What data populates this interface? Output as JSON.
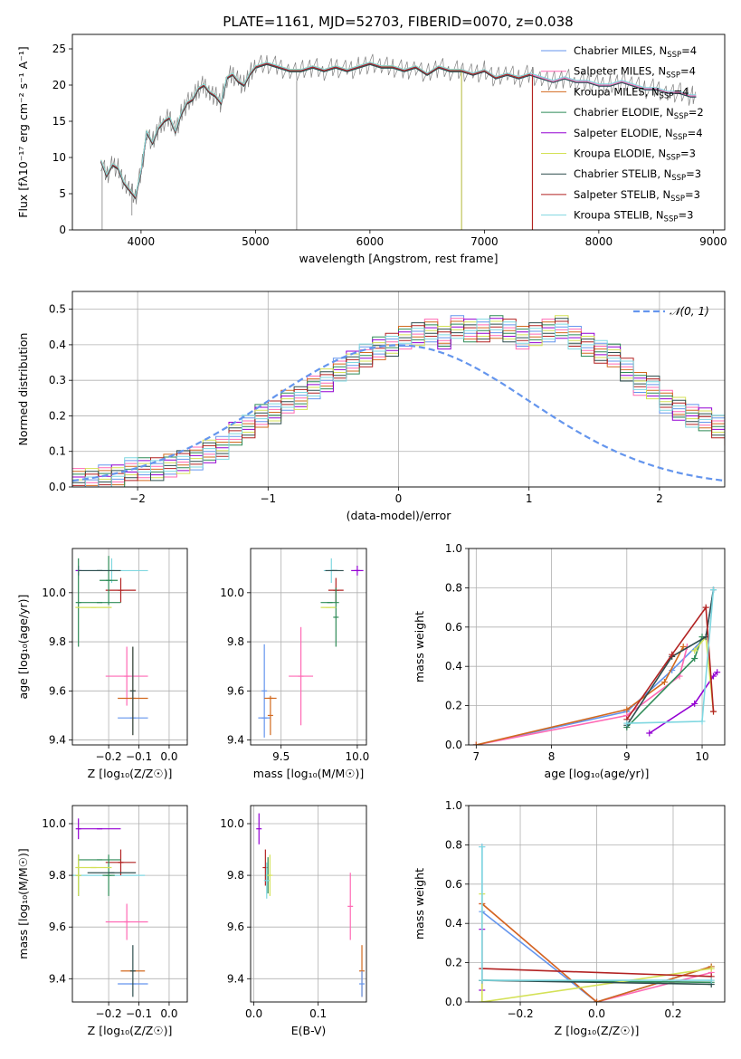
{
  "title": "PLATE=1161, MJD=52703, FIBERID=0070, z=0.038",
  "colors": {
    "frame": "#000000",
    "grid": "#b0b0b0",
    "model": "#6495ed"
  },
  "chart_data": [
    {
      "id": "spectrum",
      "type": "line",
      "title": "PLATE=1161, MJD=52703, FIBERID=0070, z=0.038",
      "xlabel": "wavelength [Angstrom, rest frame]",
      "ylabel": "Flux [fλ10⁻¹⁷ erg cm⁻² s⁻¹ A⁻¹]",
      "xlim": [
        3400,
        9100
      ],
      "ylim": [
        0,
        27
      ],
      "xticks": [
        4000,
        5000,
        6000,
        7000,
        8000,
        9000
      ],
      "yticks": [
        0,
        5,
        10,
        15,
        20,
        25
      ],
      "grid": false,
      "legend_position": "top-right",
      "data_color": "#808080",
      "data_x": [
        3650,
        3700,
        3750,
        3800,
        3850,
        3900,
        3950,
        4000,
        4050,
        4100,
        4150,
        4200,
        4250,
        4300,
        4350,
        4400,
        4450,
        4500,
        4550,
        4600,
        4650,
        4700,
        4750,
        4800,
        4850,
        4900,
        4950,
        5000,
        5100,
        5200,
        5300,
        5400,
        5500,
        5600,
        5700,
        5800,
        5900,
        6000,
        6100,
        6200,
        6300,
        6400,
        6500,
        6600,
        6700,
        6800,
        6900,
        7000,
        7100,
        7200,
        7300,
        7400,
        7500,
        7600,
        7700,
        7800,
        7900,
        8000,
        8100,
        8200,
        8300,
        8400,
        8500,
        8600,
        8700,
        8800,
        8850
      ],
      "data_y": [
        9.5,
        7.5,
        9.0,
        8.5,
        6.5,
        5.5,
        4.5,
        8.0,
        13.5,
        12.0,
        14.0,
        15.0,
        15.5,
        13.5,
        16.0,
        17.5,
        18.0,
        19.5,
        20.0,
        19.0,
        18.5,
        17.5,
        21.0,
        21.5,
        20.5,
        20.0,
        21.5,
        22.5,
        23.0,
        22.5,
        22.0,
        22.0,
        22.5,
        22.0,
        22.5,
        22.0,
        22.5,
        23.0,
        22.5,
        22.5,
        22.0,
        22.5,
        21.5,
        22.5,
        22.0,
        22.0,
        21.5,
        22.0,
        21.0,
        21.5,
        21.0,
        21.5,
        21.0,
        20.5,
        21.0,
        20.5,
        20.5,
        20.0,
        20.0,
        20.5,
        20.0,
        19.5,
        19.5,
        19.0,
        19.0,
        18.5,
        18.5
      ],
      "spikes": [
        {
          "x": 3660,
          "y": 0
        },
        {
          "x": 3920,
          "y": 2
        },
        {
          "x": 5360,
          "y": 0
        },
        {
          "x": 6800,
          "y": 0
        },
        {
          "x": 7420,
          "y": 0
        }
      ],
      "series": [
        {
          "name": "Chabrier MILES, N",
          "sub": "SSP",
          "suffix": "=4",
          "color": "#6495ed",
          "xmax": 8850
        },
        {
          "name": "Salpeter MILES, N",
          "sub": "SSP",
          "suffix": "=4",
          "color": "#ff69b4",
          "xmax": 8850
        },
        {
          "name": "Kroupa MILES, N",
          "sub": "SSP",
          "suffix": "=4",
          "color": "#d2691e",
          "xmax": 7420
        },
        {
          "name": "Chabrier ELODIE, N",
          "sub": "SSP",
          "suffix": "=2",
          "color": "#2e8b57",
          "xmax": 6800
        },
        {
          "name": "Salpeter ELODIE, N",
          "sub": "SSP",
          "suffix": "=4",
          "color": "#9400d3",
          "xmax": 6800
        },
        {
          "name": "Kroupa ELODIE, N",
          "sub": "SSP",
          "suffix": "=3",
          "color": "#d4e157",
          "xmax": 6800
        },
        {
          "name": "Chabrier STELIB, N",
          "sub": "SSP",
          "suffix": "=3",
          "color": "#2f4f4f",
          "xmax": 8850
        },
        {
          "name": "Salpeter STELIB, N",
          "sub": "SSP",
          "suffix": "=3",
          "color": "#b22222",
          "xmax": 7420
        },
        {
          "name": "Kroupa STELIB, N",
          "sub": "SSP",
          "suffix": "=3",
          "color": "#7fd7e0",
          "xmax": 8850
        }
      ]
    },
    {
      "id": "residuals",
      "type": "step-histogram",
      "xlabel": "(data-model)/error",
      "ylabel": "Normed distribution",
      "xlim": [
        -2.5,
        2.5
      ],
      "ylim": [
        0,
        0.55
      ],
      "xticks": [
        -2,
        -1,
        0,
        1,
        2
      ],
      "yticks": [
        0.0,
        0.1,
        0.2,
        0.3,
        0.4,
        0.5
      ],
      "grid": true,
      "legend_position": "top-right",
      "legend": "𝒩(0, 1)",
      "gaussian": {
        "mean": 0,
        "sigma": 1,
        "color": "#6495ed"
      },
      "bin_width": 0.1,
      "bin_start": -2.5,
      "base_values": [
        0.02,
        0.02,
        0.03,
        0.03,
        0.05,
        0.05,
        0.05,
        0.06,
        0.07,
        0.08,
        0.1,
        0.11,
        0.15,
        0.17,
        0.2,
        0.21,
        0.24,
        0.25,
        0.28,
        0.3,
        0.33,
        0.35,
        0.37,
        0.39,
        0.4,
        0.42,
        0.43,
        0.44,
        0.42,
        0.45,
        0.44,
        0.44,
        0.45,
        0.44,
        0.42,
        0.43,
        0.44,
        0.45,
        0.42,
        0.4,
        0.38,
        0.37,
        0.33,
        0.29,
        0.28,
        0.24,
        0.22,
        0.2,
        0.19,
        0.17,
        0.15,
        0.13,
        0.12,
        0.1,
        0.09,
        0.08,
        0.07,
        0.06,
        0.05,
        0.04,
        0.03,
        0.03,
        0.03,
        0.02,
        0.02,
        0.02,
        0.02,
        0.01,
        0.01,
        0.01
      ],
      "series_colors": [
        "#6495ed",
        "#ff69b4",
        "#d2691e",
        "#2e8b57",
        "#9400d3",
        "#d4e157",
        "#2f4f4f",
        "#b22222",
        "#7fd7e0"
      ]
    },
    {
      "id": "age-vs-Z",
      "type": "errorbar",
      "xlabel": "Z [log₁₀(Z/Z☉)]",
      "ylabel": "age  [log₁₀(age/yr)]",
      "xlim": [
        -0.32,
        0.06
      ],
      "ylim": [
        9.38,
        10.18
      ],
      "xticks": [
        -0.2,
        -0.1,
        0.0
      ],
      "xticklabels": [
        "−0.2",
        "−0.1",
        "0.0"
      ],
      "yticks": [
        9.4,
        9.6,
        9.8,
        10.0
      ],
      "grid": true,
      "points": [
        {
          "x": -0.12,
          "y": 9.49,
          "xerr": 0.05,
          "yerr": 0.0,
          "color": "#6495ed"
        },
        {
          "x": -0.14,
          "y": 9.66,
          "xerr": 0.07,
          "yerr": 0.12,
          "color": "#ff69b4"
        },
        {
          "x": -0.12,
          "y": 9.57,
          "xerr": 0.05,
          "yerr": 0.0,
          "color": "#d2691e"
        },
        {
          "x": -0.12,
          "y": 9.6,
          "xerr": 0.0,
          "yerr": 0.18,
          "color": "#d2691e"
        },
        {
          "x": -0.12,
          "y": 9.6,
          "xerr": 0.0,
          "yerr": 0.18,
          "color": "#2f4f4f"
        },
        {
          "x": -0.19,
          "y": 10.09,
          "xerr": 0.12,
          "yerr": 0.05,
          "color": "#7fd7e0"
        },
        {
          "x": -0.3,
          "y": 10.09,
          "xerr": 0.0,
          "yerr": 0.02,
          "color": "#9400d3"
        },
        {
          "x": -0.16,
          "y": 10.01,
          "xerr": 0.05,
          "yerr": 0.05,
          "color": "#b22222"
        },
        {
          "x": -0.2,
          "y": 10.05,
          "xerr": 0.03,
          "yerr": 0.1,
          "color": "#2e8b57"
        },
        {
          "x": -0.23,
          "y": 9.96,
          "xerr": 0.07,
          "yerr": 0.0,
          "color": "#2e8b57"
        },
        {
          "x": -0.3,
          "y": 9.96,
          "xerr": 0.0,
          "yerr": 0.18,
          "color": "#2e8b57"
        },
        {
          "x": -0.25,
          "y": 9.94,
          "xerr": 0.06,
          "yerr": 0.0,
          "color": "#d4e157"
        },
        {
          "x": -0.23,
          "y": 10.09,
          "xerr": 0.07,
          "yerr": 0.0,
          "color": "#2f4f4f"
        }
      ]
    },
    {
      "id": "age-vs-mass",
      "type": "errorbar",
      "xlabel": "mass [log₁₀(M/M☉)]",
      "ylabel": "",
      "xlim": [
        9.3,
        10.06
      ],
      "ylim": [
        9.38,
        10.18
      ],
      "xticks": [
        9.5,
        10.0
      ],
      "xticklabels": [
        "9.5",
        "10.0"
      ],
      "yticks": [
        9.4,
        9.6,
        9.8,
        10.0
      ],
      "grid": true,
      "points": [
        {
          "x": 9.39,
          "y": 9.49,
          "xerr": 0.04,
          "yerr": 0.0,
          "color": "#6495ed"
        },
        {
          "x": 9.39,
          "y": 9.6,
          "xerr": 0.0,
          "yerr": 0.19,
          "color": "#6495ed"
        },
        {
          "x": 9.63,
          "y": 9.66,
          "xerr": 0.08,
          "yerr": 0.2,
          "color": "#ff69b4"
        },
        {
          "x": 9.43,
          "y": 9.57,
          "xerr": 0.04,
          "yerr": 0.0,
          "color": "#d2691e"
        },
        {
          "x": 9.43,
          "y": 9.5,
          "xerr": 0.0,
          "yerr": 0.08,
          "color": "#d2691e"
        },
        {
          "x": 9.83,
          "y": 10.09,
          "xerr": 0.05,
          "yerr": 0.05,
          "color": "#7fd7e0"
        },
        {
          "x": 10.0,
          "y": 10.09,
          "xerr": 0.04,
          "yerr": 0.02,
          "color": "#9400d3"
        },
        {
          "x": 9.86,
          "y": 10.01,
          "xerr": 0.05,
          "yerr": 0.05,
          "color": "#b22222"
        },
        {
          "x": 9.86,
          "y": 9.9,
          "xerr": 0.0,
          "yerr": 0.12,
          "color": "#2e8b57"
        },
        {
          "x": 9.82,
          "y": 9.96,
          "xerr": 0.06,
          "yerr": 0.0,
          "color": "#2e8b57"
        },
        {
          "x": 9.81,
          "y": 9.94,
          "xerr": 0.05,
          "yerr": 0.0,
          "color": "#d4e157"
        },
        {
          "x": 9.85,
          "y": 10.09,
          "xerr": 0.06,
          "yerr": 0.0,
          "color": "#2f4f4f"
        }
      ]
    },
    {
      "id": "massweight-vs-age",
      "type": "line",
      "xlabel": "age  [log₁₀(age/yr)]",
      "ylabel": "mass weight",
      "xlim": [
        6.9,
        10.3
      ],
      "ylim": [
        0,
        1
      ],
      "xticks": [
        7,
        8,
        9,
        10
      ],
      "yticks": [
        0.0,
        0.2,
        0.4,
        0.6,
        0.8,
        1.0
      ],
      "grid": true,
      "series": [
        {
          "color": "#6495ed",
          "x": [
            7.0,
            9.0,
            9.6,
            10.05,
            10.15
          ],
          "y": [
            0.0,
            0.17,
            0.38,
            0.55,
            0.79
          ]
        },
        {
          "color": "#ff69b4",
          "x": [
            7.0,
            9.0,
            9.7,
            9.8
          ],
          "y": [
            0.0,
            0.15,
            0.35,
            0.5
          ]
        },
        {
          "color": "#d2691e",
          "x": [
            7.0,
            9.0,
            9.5,
            9.75
          ],
          "y": [
            0.0,
            0.18,
            0.32,
            0.5
          ]
        },
        {
          "color": "#2e8b57",
          "x": [
            9.0,
            9.9,
            10.0
          ],
          "y": [
            0.09,
            0.44,
            0.55
          ]
        },
        {
          "color": "#9400d3",
          "x": [
            9.3,
            9.9,
            10.15,
            10.2
          ],
          "y": [
            0.06,
            0.21,
            0.35,
            0.37
          ]
        },
        {
          "color": "#d4e157",
          "x": [
            9.9,
            10.05,
            10.15
          ],
          "y": [
            0.48,
            0.55,
            0.17
          ]
        },
        {
          "color": "#2f4f4f",
          "x": [
            9.0,
            9.6,
            10.05,
            10.15
          ],
          "y": [
            0.1,
            0.45,
            0.55,
            0.79
          ]
        },
        {
          "color": "#b22222",
          "x": [
            9.0,
            9.6,
            10.05,
            10.15
          ],
          "y": [
            0.13,
            0.46,
            0.7,
            0.17
          ]
        },
        {
          "color": "#7fd7e0",
          "x": [
            9.0,
            10.0,
            10.15
          ],
          "y": [
            0.11,
            0.12,
            0.79
          ]
        }
      ]
    },
    {
      "id": "mass-vs-Z",
      "type": "errorbar",
      "xlabel": "Z [log₁₀(Z/Z☉)]",
      "ylabel": "mass [log₁₀(M/M☉)]",
      "xlim": [
        -0.32,
        0.06
      ],
      "ylim": [
        9.31,
        10.07
      ],
      "xticks": [
        -0.2,
        -0.1,
        0.0
      ],
      "xticklabels": [
        "−0.2",
        "−0.1",
        "0.0"
      ],
      "yticks": [
        9.4,
        9.6,
        9.8,
        10.0
      ],
      "grid": true,
      "points": [
        {
          "x": -0.12,
          "y": 9.38,
          "xerr": 0.05,
          "yerr": 0.0,
          "color": "#6495ed"
        },
        {
          "x": -0.14,
          "y": 9.62,
          "xerr": 0.07,
          "yerr": 0.07,
          "color": "#ff69b4"
        },
        {
          "x": -0.12,
          "y": 9.43,
          "xerr": 0.04,
          "yerr": 0.0,
          "color": "#d2691e"
        },
        {
          "x": -0.12,
          "y": 9.43,
          "xerr": 0.0,
          "yerr": 0.1,
          "color": "#2f4f4f"
        },
        {
          "x": -0.2,
          "y": 9.8,
          "xerr": 0.12,
          "yerr": 0.0,
          "color": "#7fd7e0"
        },
        {
          "x": -0.23,
          "y": 9.98,
          "xerr": 0.07,
          "yerr": 0.0,
          "color": "#9400d3"
        },
        {
          "x": -0.3,
          "y": 9.98,
          "xerr": 0.0,
          "yerr": 0.04,
          "color": "#9400d3"
        },
        {
          "x": -0.16,
          "y": 9.85,
          "xerr": 0.05,
          "yerr": 0.05,
          "color": "#b22222"
        },
        {
          "x": -0.2,
          "y": 9.8,
          "xerr": 0.02,
          "yerr": 0.08,
          "color": "#2e8b57"
        },
        {
          "x": -0.23,
          "y": 9.86,
          "xerr": 0.07,
          "yerr": 0.0,
          "color": "#2e8b57"
        },
        {
          "x": -0.3,
          "y": 9.8,
          "xerr": 0.0,
          "yerr": 0.08,
          "color": "#2e8b57"
        },
        {
          "x": -0.25,
          "y": 9.83,
          "xerr": 0.06,
          "yerr": 0.0,
          "color": "#d4e157"
        },
        {
          "x": -0.3,
          "y": 9.8,
          "xerr": 0.0,
          "yerr": 0.08,
          "color": "#d4e157"
        },
        {
          "x": -0.19,
          "y": 9.81,
          "xerr": 0.08,
          "yerr": 0.0,
          "color": "#2f4f4f"
        }
      ]
    },
    {
      "id": "mass-vs-ebv",
      "type": "errorbar",
      "xlabel": "E(B-V)",
      "ylabel": "",
      "xlim": [
        -0.005,
        0.175
      ],
      "ylim": [
        9.31,
        10.07
      ],
      "xticks": [
        0.0,
        0.1
      ],
      "xticklabels": [
        "0.0",
        "0.1"
      ],
      "yticks": [
        9.4,
        9.6,
        9.8,
        10.0
      ],
      "grid": true,
      "points": [
        {
          "x": 0.168,
          "y": 9.43,
          "xerr": 0.0,
          "yerr": 0.1,
          "color": "#d2691e"
        },
        {
          "x": 0.168,
          "y": 9.38,
          "xerr": 0.0,
          "yerr": 0.05,
          "color": "#6495ed"
        },
        {
          "x": 0.15,
          "y": 9.68,
          "xerr": 0.0,
          "yerr": 0.13,
          "color": "#ff69b4"
        },
        {
          "x": 0.008,
          "y": 9.98,
          "xerr": 0.0,
          "yerr": 0.06,
          "color": "#9400d3"
        },
        {
          "x": 0.018,
          "y": 9.83,
          "xerr": 0.0,
          "yerr": 0.07,
          "color": "#b22222"
        },
        {
          "x": 0.022,
          "y": 9.8,
          "xerr": 0.0,
          "yerr": 0.07,
          "color": "#2e8b57"
        },
        {
          "x": 0.025,
          "y": 9.8,
          "xerr": 0.0,
          "yerr": 0.08,
          "color": "#d4e157"
        },
        {
          "x": 0.02,
          "y": 9.78,
          "xerr": 0.0,
          "yerr": 0.07,
          "color": "#7fd7e0"
        }
      ]
    },
    {
      "id": "massweight-vs-Z",
      "type": "line",
      "xlabel": "Z [log₁₀(Z/Z☉)]",
      "ylabel": "mass weight",
      "xlim": [
        -0.335,
        0.335
      ],
      "ylim": [
        0,
        1
      ],
      "xticks": [
        -0.2,
        0.0,
        0.2
      ],
      "xticklabels": [
        "−0.2",
        "0.0",
        "0.2"
      ],
      "yticks": [
        0.0,
        0.2,
        0.4,
        0.6,
        0.8,
        1.0
      ],
      "grid": true,
      "series": [
        {
          "color": "#6495ed",
          "x": [
            -0.3,
            -0.3,
            0.0,
            0.3
          ],
          "y": [
            0.79,
            0.46,
            0.0,
            0.18
          ]
        },
        {
          "color": "#ff69b4",
          "x": [
            -0.3,
            0.0,
            0.3
          ],
          "y": [
            0.5,
            0.0,
            0.15
          ]
        },
        {
          "color": "#d2691e",
          "x": [
            -0.3,
            0.0,
            0.3
          ],
          "y": [
            0.5,
            0.0,
            0.18
          ]
        },
        {
          "color": "#2e8b57",
          "x": [
            -0.3,
            0.3
          ],
          "y": [
            0.11,
            0.1
          ]
        },
        {
          "color": "#9400d3",
          "x": [
            -0.3,
            -0.3
          ],
          "y": [
            0.37,
            0.06
          ]
        },
        {
          "color": "#d4e157",
          "x": [
            -0.3,
            -0.3,
            0.3
          ],
          "y": [
            0.55,
            0.0,
            0.17
          ]
        },
        {
          "color": "#2f4f4f",
          "x": [
            -0.3,
            0.3
          ],
          "y": [
            0.11,
            0.09
          ]
        },
        {
          "color": "#b22222",
          "x": [
            -0.3,
            0.3
          ],
          "y": [
            0.17,
            0.13
          ]
        },
        {
          "color": "#7fd7e0",
          "x": [
            -0.3,
            -0.3,
            0.3
          ],
          "y": [
            0.79,
            0.11,
            0.11
          ]
        }
      ]
    }
  ]
}
